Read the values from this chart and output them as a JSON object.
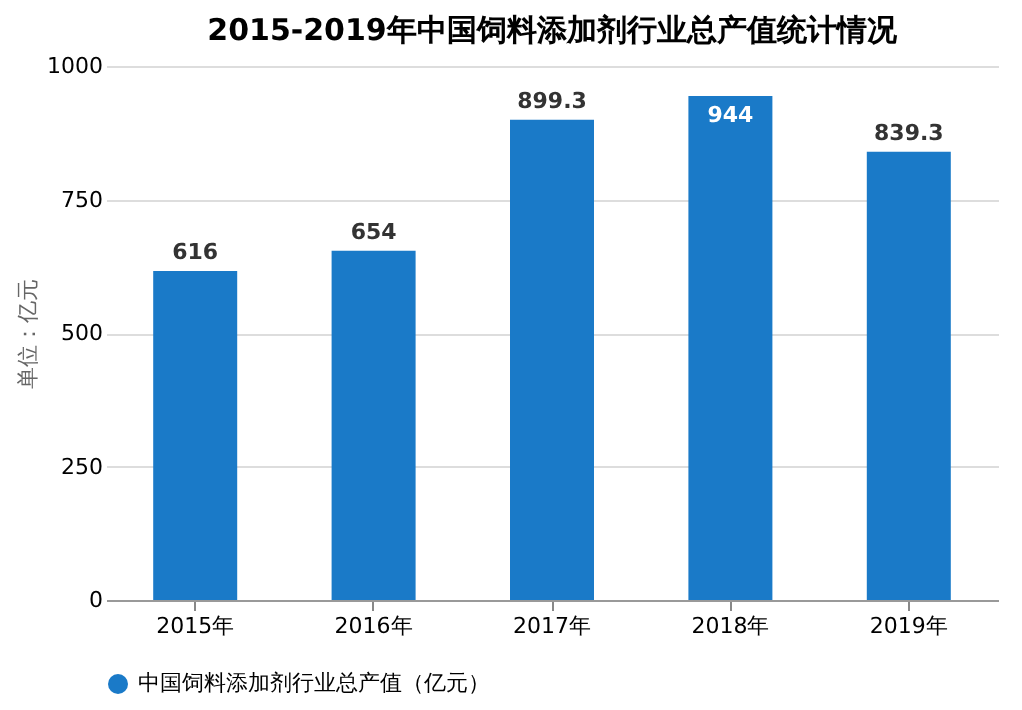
{
  "chart_data": {
    "type": "bar",
    "title": "2015-2019年中国饲料添加剂行业总产值统计情况",
    "ylabel": "单位：亿元",
    "categories": [
      "2015年",
      "2016年",
      "2017年",
      "2018年",
      "2019年"
    ],
    "series": [
      {
        "name": "中国饲料添加剂行业总产值（亿元）",
        "color": "#1a7ac8",
        "values": [
          616,
          654,
          899.3,
          944,
          839.3
        ]
      }
    ],
    "ylim": [
      0,
      1000
    ],
    "yticks": [
      0,
      250,
      500,
      750,
      1000
    ],
    "grid": "y",
    "legend": "bottom",
    "data_labels": true
  }
}
